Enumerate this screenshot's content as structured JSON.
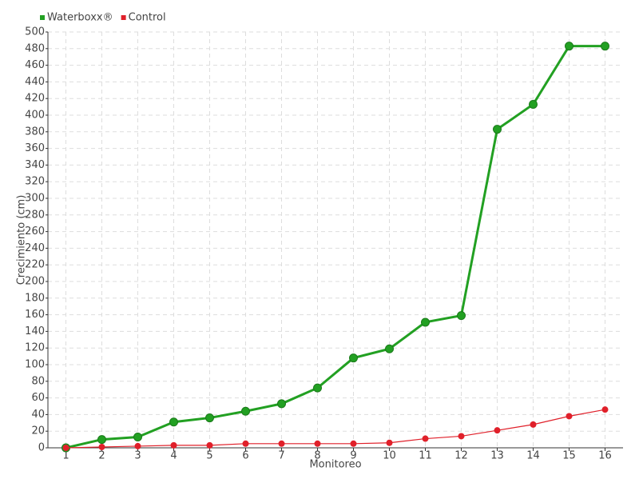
{
  "chart_data": {
    "type": "line",
    "categories": [
      "1",
      "2",
      "3",
      "4",
      "5",
      "6",
      "7",
      "8",
      "9",
      "10",
      "11",
      "12",
      "13",
      "14",
      "15",
      "16"
    ],
    "series": [
      {
        "name": "Waterboxx®",
        "color": "#22a022",
        "values": [
          0,
          10,
          13,
          31,
          36,
          44,
          53,
          72,
          108,
          119,
          151,
          159,
          383,
          413,
          483,
          483
        ]
      },
      {
        "name": "Control",
        "color": "#e0202a",
        "values": [
          0,
          1,
          2,
          3,
          3,
          5,
          5,
          5,
          5,
          6,
          11,
          14,
          21,
          28,
          38,
          46
        ]
      }
    ],
    "x_label": "Monitoreo",
    "y_label": "Crecimiento (cm)",
    "ylim": [
      0,
      500
    ],
    "yticks": [
      0,
      20,
      40,
      60,
      80,
      100,
      120,
      140,
      160,
      180,
      200,
      220,
      240,
      260,
      280,
      300,
      320,
      340,
      360,
      380,
      400,
      420,
      440,
      460,
      480,
      500
    ],
    "grid": true,
    "legend": "top-left"
  }
}
